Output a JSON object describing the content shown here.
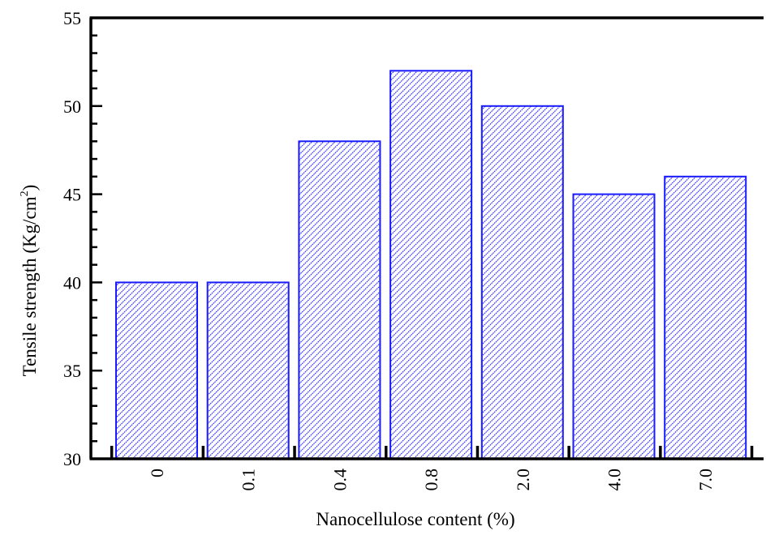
{
  "chart_data": {
    "type": "bar",
    "categories": [
      "0",
      "0.1",
      "0.4",
      "0.8",
      "2.0",
      "4.0",
      "7.0"
    ],
    "values": [
      40,
      40,
      48,
      52,
      50,
      45,
      46
    ],
    "xlabel": "Nanocellulose content (%)",
    "ylabel": {
      "main": "Tensile strength (Kg/cm",
      "sup": "2",
      "close": ")"
    },
    "ylim": [
      30,
      55
    ],
    "yticks": [
      30,
      35,
      40,
      45,
      50,
      55
    ],
    "ytick_labels": [
      "30",
      "35",
      "40",
      "45",
      "50",
      "55"
    ],
    "grid": false,
    "legend": "none",
    "colors": {
      "bar_edge": "#1a1aff",
      "bar_hatch": "#1a1aff",
      "bar_fill": "#ffffff",
      "axis": "#000000"
    },
    "hatch": "diagonal"
  }
}
